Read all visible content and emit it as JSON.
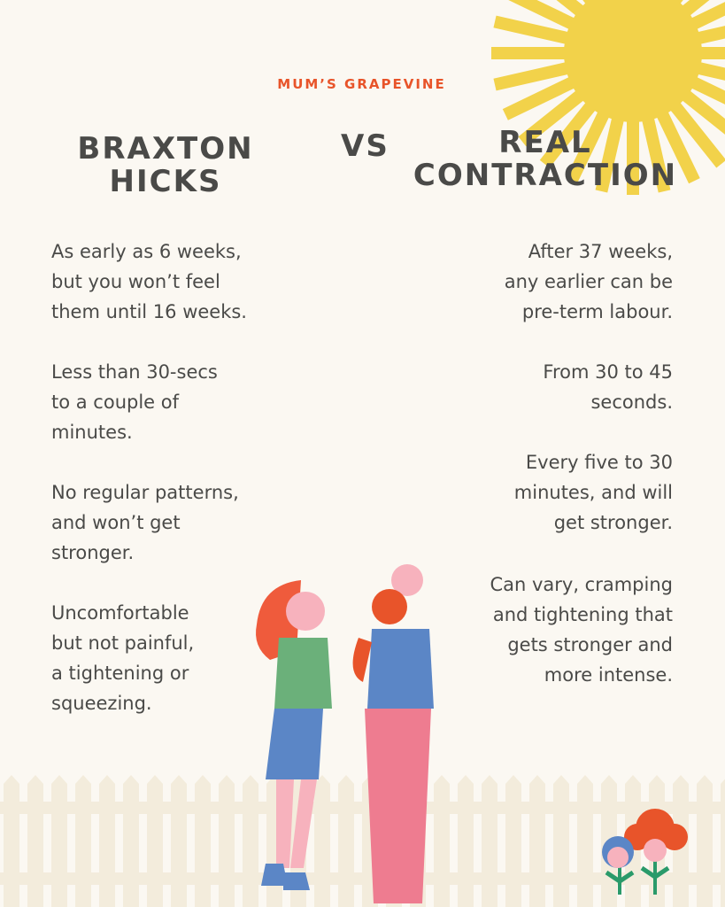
{
  "header": {
    "brand": "MUM’S GRAPEVINE",
    "left_title": [
      "BRAXTON",
      "HICKS"
    ],
    "vs": "VS",
    "right_title": [
      "REAL",
      "CONTRACTION"
    ]
  },
  "left_items": [
    [
      "As early as 6 weeks,",
      "but you won’t feel",
      "them until 16 weeks."
    ],
    [
      "Less than 30-secs",
      "to a couple of",
      "minutes."
    ],
    [
      "No regular patterns,",
      "and won’t get",
      "stronger."
    ],
    [
      "Uncomfortable",
      "but not painful,",
      "a tightening or",
      "squeezing."
    ]
  ],
  "right_items": [
    [
      "After 37 weeks,",
      "any earlier can be",
      "pre-term labour."
    ],
    [
      "From 30 to 45",
      "seconds."
    ],
    [
      "Every five to 30",
      "minutes, and will",
      "get stronger."
    ],
    [
      "Can vary, cramping",
      "and tightening that",
      "gets stronger and",
      "more intense."
    ]
  ]
}
